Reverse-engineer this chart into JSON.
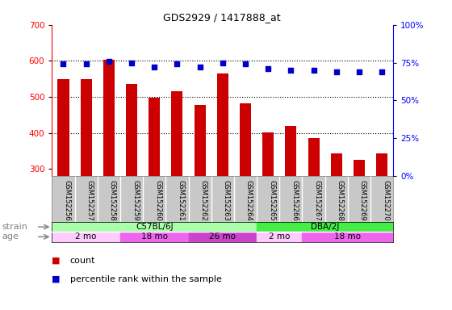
{
  "title": "GDS2929 / 1417888_at",
  "samples": [
    "GSM152256",
    "GSM152257",
    "GSM152258",
    "GSM152259",
    "GSM152260",
    "GSM152261",
    "GSM152262",
    "GSM152263",
    "GSM152264",
    "GSM152265",
    "GSM152266",
    "GSM152267",
    "GSM152268",
    "GSM152269",
    "GSM152270"
  ],
  "counts": [
    550,
    550,
    602,
    535,
    498,
    515,
    477,
    565,
    482,
    402,
    420,
    385,
    343,
    325,
    342
  ],
  "percentiles": [
    74,
    74,
    76,
    75,
    72,
    74,
    72,
    75,
    74,
    71,
    70,
    70,
    69,
    69,
    69
  ],
  "ylim_left": [
    280,
    700
  ],
  "ylim_right": [
    0,
    100
  ],
  "yticks_left": [
    300,
    400,
    500,
    600,
    700
  ],
  "yticks_right": [
    0,
    25,
    50,
    75,
    100
  ],
  "bar_color": "#cc0000",
  "dot_color": "#0000cc",
  "grid_dotted_values": [
    400,
    500,
    600
  ],
  "strain_groups": [
    {
      "label": "C57BL/6J",
      "start": 0,
      "end": 9,
      "color": "#aaffaa"
    },
    {
      "label": "DBA/2J",
      "start": 9,
      "end": 15,
      "color": "#44ee44"
    }
  ],
  "age_groups": [
    {
      "label": "2 mo",
      "start": 0,
      "end": 3,
      "color": "#ffccff"
    },
    {
      "label": "18 mo",
      "start": 3,
      "end": 6,
      "color": "#ee66ee"
    },
    {
      "label": "26 mo",
      "start": 6,
      "end": 9,
      "color": "#cc44cc"
    },
    {
      "label": "2 mo",
      "start": 9,
      "end": 11,
      "color": "#ffccff"
    },
    {
      "label": "18 mo",
      "start": 11,
      "end": 15,
      "color": "#ee66ee"
    }
  ],
  "tick_label_area_bg": "#c8c8c8",
  "legend_count_color": "#cc0000",
  "legend_pct_color": "#0000cc"
}
